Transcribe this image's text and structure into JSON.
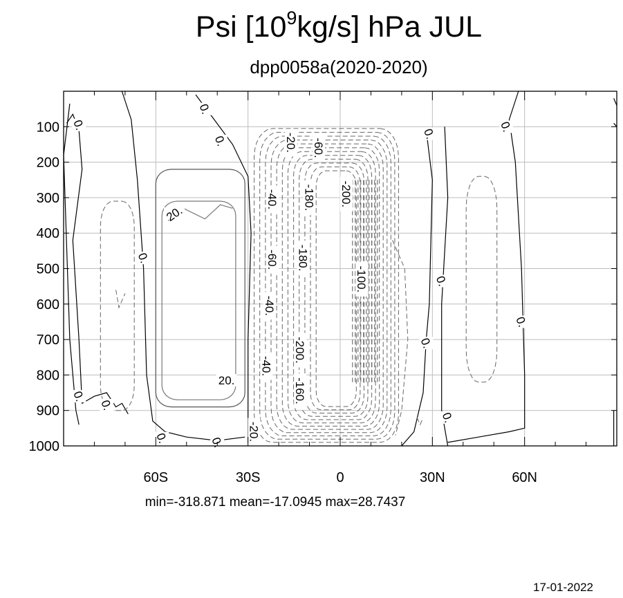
{
  "chart_data": {
    "type": "contour",
    "title_main": "Psi [10",
    "title_exp": "9",
    "title_rest": "kg/s]  hPa JUL",
    "subtitle": "dpp0058a(2020-2020)",
    "x_ticks": [
      {
        "value": -60,
        "label": "60S"
      },
      {
        "value": -30,
        "label": "30S"
      },
      {
        "value": 0,
        "label": "0"
      },
      {
        "value": 30,
        "label": "30N"
      },
      {
        "value": 60,
        "label": "60N"
      }
    ],
    "y_ticks": [
      100,
      200,
      300,
      400,
      500,
      600,
      700,
      800,
      900,
      1000
    ],
    "xlim": [
      -90,
      90
    ],
    "ylim": [
      0,
      1000
    ],
    "y_reversed": true,
    "grid": true,
    "stats": "min=-318.871   mean=-17.0945   max=28.7437",
    "contour_labels": [
      {
        "text": "0.",
        "x": -85,
        "y": 95
      },
      {
        "text": "0.",
        "x": -44,
        "y": 50
      },
      {
        "text": "0.",
        "x": -39,
        "y": 140
      },
      {
        "text": "0.",
        "x": -64,
        "y": 470
      },
      {
        "text": "0.",
        "x": -85,
        "y": 860
      },
      {
        "text": "0.",
        "x": -76,
        "y": 885
      },
      {
        "text": "0.",
        "x": -58,
        "y": 978
      },
      {
        "text": "0.",
        "x": -40,
        "y": 990
      },
      {
        "text": "20.",
        "x": -54,
        "y": 345
      },
      {
        "text": "20.",
        "x": -37,
        "y": 815
      },
      {
        "text": "-20.",
        "x": -16,
        "y": 145
      },
      {
        "text": "-60.",
        "x": -7,
        "y": 160
      },
      {
        "text": "-40.",
        "x": -22,
        "y": 305
      },
      {
        "text": "-180.",
        "x": -10,
        "y": 300
      },
      {
        "text": "-200.",
        "x": 2,
        "y": 290
      },
      {
        "text": "-60.",
        "x": -22,
        "y": 475
      },
      {
        "text": "-180.",
        "x": -12,
        "y": 470
      },
      {
        "text": "-100.",
        "x": 7,
        "y": 530
      },
      {
        "text": "-40.",
        "x": -23,
        "y": 605
      },
      {
        "text": "-200.",
        "x": -13,
        "y": 730
      },
      {
        "text": "-40.",
        "x": -24,
        "y": 775
      },
      {
        "text": "-160.",
        "x": -13,
        "y": 845
      },
      {
        "text": "-20.",
        "x": -28,
        "y": 960
      },
      {
        "text": "0.",
        "x": 29,
        "y": 120
      },
      {
        "text": "0.",
        "x": 54,
        "y": 100
      },
      {
        "text": "0.",
        "x": 33,
        "y": 535
      },
      {
        "text": "0.",
        "x": 59,
        "y": 650
      },
      {
        "text": "0.",
        "x": 28,
        "y": 710
      },
      {
        "text": "0.",
        "x": 35,
        "y": 920
      }
    ]
  },
  "footer": {
    "date": "17-01-2022"
  }
}
